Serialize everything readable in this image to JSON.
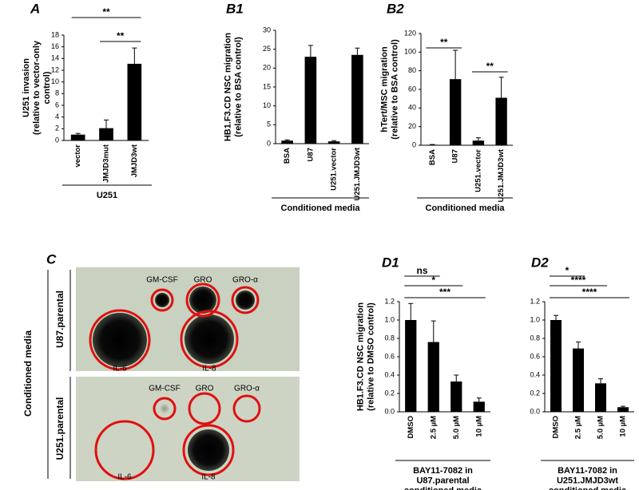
{
  "chart_data": [
    {
      "type": "bar",
      "title": "A",
      "ylabel": [
        "U251 invasion",
        "(relative to vector-only",
        "control)"
      ],
      "categories": [
        "vector",
        "JMJD3mut",
        "JMJD3wt"
      ],
      "values": [
        1.0,
        2.1,
        13.1
      ],
      "errors": [
        0.2,
        1.4,
        2.7
      ],
      "color": "#000000",
      "ylim": [
        0,
        18
      ],
      "yticks": [
        0,
        2,
        4,
        6,
        8,
        10,
        12,
        14,
        16,
        18
      ],
      "group_label": [
        "U251"
      ],
      "significance": [
        {
          "between": [
            "vector",
            "JMJD3wt"
          ],
          "label": "**"
        },
        {
          "between": [
            "JMJD3mut",
            "JMJD3wt"
          ],
          "label": "**"
        }
      ]
    },
    {
      "type": "bar",
      "title": "B1",
      "ylabel": [
        "HB1.F3.CD NSC migration",
        "(relative to BSA control)"
      ],
      "categories": [
        "BSA",
        "U87",
        "U251.vector",
        "U251.JMJD3wt"
      ],
      "values": [
        0.8,
        23,
        0.6,
        23.5
      ],
      "errors": [
        0.2,
        3,
        0.2,
        1.8
      ],
      "color": "#000000",
      "ylim": [
        0,
        30
      ],
      "yticks": [
        0,
        5,
        10,
        15,
        20,
        25,
        30
      ],
      "group_label": [
        "Conditioned media"
      ],
      "significance": []
    },
    {
      "type": "bar",
      "title": "B2",
      "ylabel": [
        "hTert/MSC migration",
        "(relative to BSA control)"
      ],
      "categories": [
        "BSA",
        "U87",
        "U251.vector",
        "U251.JMJD3wt"
      ],
      "values": [
        0.5,
        71,
        5,
        51
      ],
      "errors": [
        0.3,
        31,
        3,
        22
      ],
      "color": "#000000",
      "ylim": [
        0,
        120
      ],
      "yticks": [
        0,
        20,
        40,
        60,
        80,
        100,
        120
      ],
      "group_label": [
        "Conditioned media"
      ],
      "significance": [
        {
          "between": [
            "BSA",
            "U87"
          ],
          "label": "**"
        },
        {
          "between": [
            "U251.vector",
            "U251.JMJD3wt"
          ],
          "label": "**"
        }
      ]
    },
    {
      "type": "bar",
      "title": "D1",
      "ylabel": [
        "HB1.F3.CD NSC migration",
        "(relative to DMSO control)"
      ],
      "categories": [
        "DMSO",
        "2.5 µM",
        "5.0 µM",
        "10 µM"
      ],
      "values": [
        1.0,
        0.76,
        0.33,
        0.11
      ],
      "errors": [
        0.18,
        0.23,
        0.07,
        0.04
      ],
      "color": "#000000",
      "ylim": [
        0,
        1.2
      ],
      "yticks": [
        {
          "value": 0,
          "label": "0.0"
        },
        {
          "value": 0.2,
          "label": "0.2"
        },
        {
          "value": 0.4,
          "label": "0.4"
        },
        {
          "value": 0.6,
          "label": "0.6"
        },
        {
          "value": 0.8,
          "label": "0.8"
        },
        {
          "value": 1,
          "label": "1.0"
        },
        {
          "value": 1.2,
          "label": "1.2"
        }
      ],
      "group_label": [
        "BAY11-7082 in",
        "U87.parental",
        "conditioned media"
      ],
      "significance": [
        {
          "between": [
            "DMSO",
            "2.5 µM"
          ],
          "label": "ns"
        },
        {
          "between": [
            "DMSO",
            "5.0 µM"
          ],
          "label": "*"
        },
        {
          "between": [
            "DMSO",
            "10 µM"
          ],
          "label": "***"
        }
      ]
    },
    {
      "type": "bar",
      "title": "D2",
      "categories": [
        "DMSO",
        "2.5 µM",
        "5.0 µM",
        "10 µM"
      ],
      "values": [
        1.0,
        0.69,
        0.31,
        0.05
      ],
      "errors": [
        0.05,
        0.07,
        0.05,
        0.01
      ],
      "color": "#000000",
      "ylim": [
        0,
        1.2
      ],
      "yticks": [
        {
          "value": 0,
          "label": "0.0"
        },
        {
          "value": 0.2,
          "label": "0.2"
        },
        {
          "value": 0.4,
          "label": "0.4"
        },
        {
          "value": 0.6,
          "label": "0.6"
        },
        {
          "value": 0.8,
          "label": "0.8"
        },
        {
          "value": 1,
          "label": "1.0"
        },
        {
          "value": 1.2,
          "label": "1.2"
        }
      ],
      "group_label": [
        "BAY11-7082 in",
        "U251.JMJD3wt",
        "conditioned media"
      ],
      "significance": [
        {
          "between": [
            "DMSO",
            "2.5 µM"
          ],
          "label": "*"
        },
        {
          "between": [
            "DMSO",
            "5.0 µM"
          ],
          "label": "****"
        },
        {
          "between": [
            "DMSO",
            "10 µM"
          ],
          "label": "****"
        }
      ]
    }
  ],
  "panel_c": {
    "title": "C",
    "side_label": "Conditioned media",
    "blots": [
      {
        "name": "U87.parental",
        "spots": [
          "GM-CSF",
          "GRO",
          "GRO-α",
          "IL-6",
          "IL-8"
        ]
      },
      {
        "name": "U251.parental",
        "spots": [
          "GM-CSF",
          "GRO",
          "GRO-α",
          "IL-6",
          "IL-8"
        ]
      }
    ]
  }
}
